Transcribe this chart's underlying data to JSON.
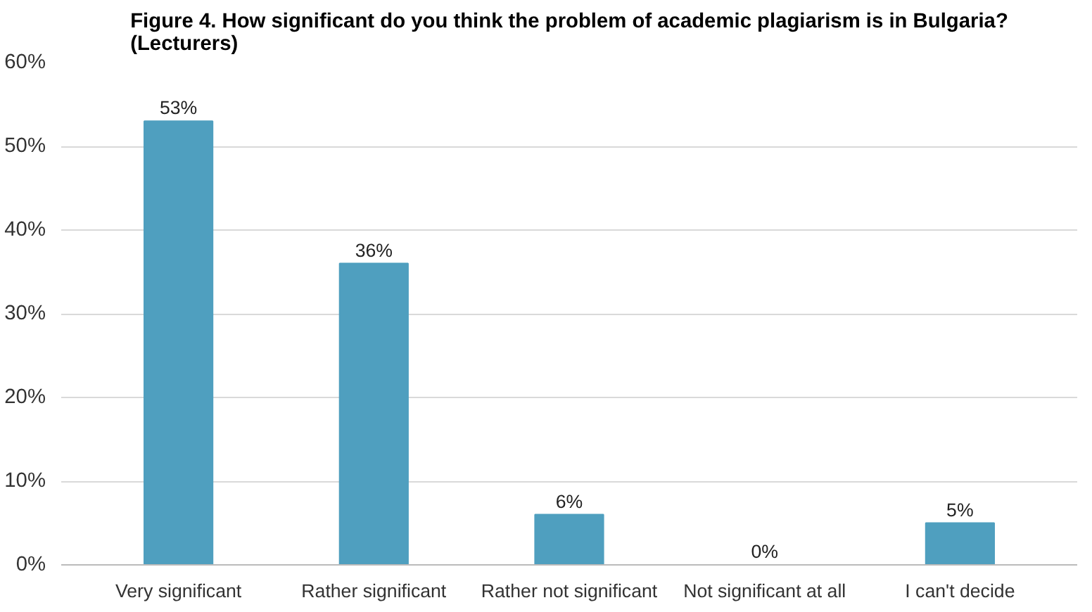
{
  "chart_data": {
    "type": "bar",
    "title": "Figure 4. How significant do you think the problem of academic plagiarism is in Bulgaria?\n(Lecturers)",
    "categories": [
      "Very significant",
      "Rather significant",
      "Rather not significant",
      "Not significant at all",
      "I can't decide"
    ],
    "values": [
      53,
      36,
      6,
      0,
      5
    ],
    "value_labels": [
      "53%",
      "36%",
      "6%",
      "0%",
      "5%"
    ],
    "color": "#4f9fbf",
    "ylim": [
      0,
      60
    ],
    "yticks": [
      {
        "value": 0,
        "label": "0%"
      },
      {
        "value": 10,
        "label": "10%"
      },
      {
        "value": 20,
        "label": "20%"
      },
      {
        "value": 30,
        "label": "30%"
      },
      {
        "value": 40,
        "label": "40%"
      },
      {
        "value": 50,
        "label": "50%"
      },
      {
        "value": 60,
        "label": "60%"
      }
    ],
    "grid": "y"
  }
}
